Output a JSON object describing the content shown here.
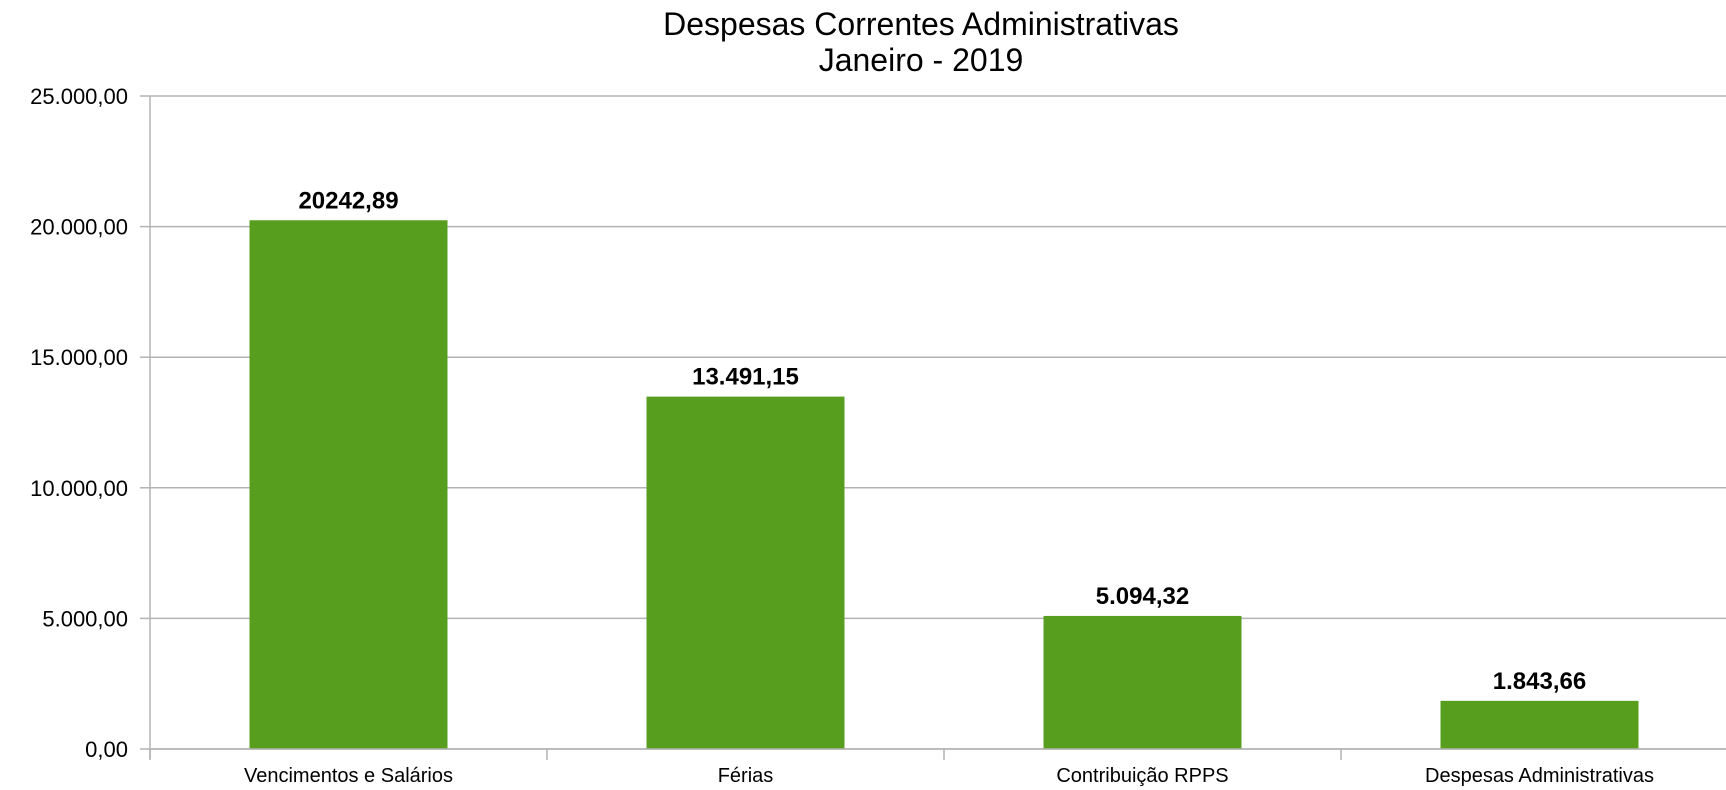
{
  "chart_data": {
    "type": "bar",
    "title": "Despesas Correntes Administrativas",
    "subtitle": "Janeiro - 2019",
    "categories": [
      "Vencimentos e Salários",
      "Férias",
      "Contribuição RPPS",
      "Despesas Administrativas"
    ],
    "values": [
      20242.89,
      13491.15,
      5094.32,
      1843.66
    ],
    "data_labels": [
      "20242,89",
      "13.491,15",
      "5.094,32",
      "1.843,66"
    ],
    "ylim": [
      0,
      25000
    ],
    "yticks": [
      0,
      5000,
      10000,
      15000,
      20000,
      25000
    ],
    "ytick_labels": [
      "0,00",
      "5.000,00",
      "10.000,00",
      "15.000,00",
      "20.000,00",
      "25.000,00"
    ],
    "grid": true,
    "legend": "none",
    "bar_color": "#589e1e",
    "grid_color": "#b3b3b3"
  }
}
